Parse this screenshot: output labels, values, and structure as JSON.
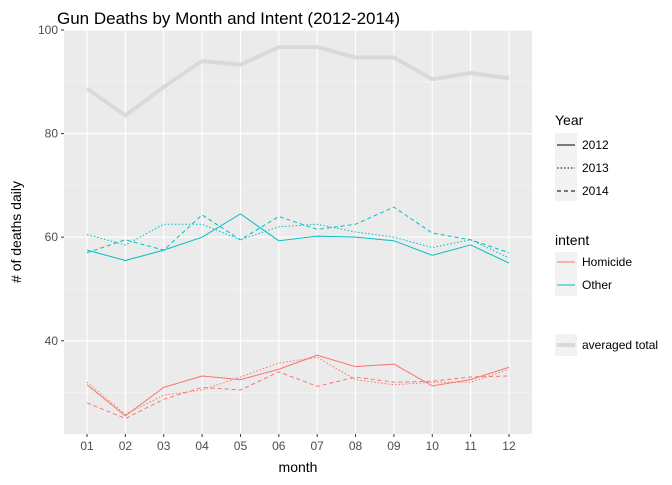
{
  "chart_data": {
    "type": "line",
    "title": "Gun Deaths by Month and Intent (2012-2014)",
    "xlabel": "month",
    "ylabel": "# of deaths daily",
    "categories": [
      "01",
      "02",
      "03",
      "04",
      "05",
      "06",
      "07",
      "08",
      "09",
      "10",
      "11",
      "12"
    ],
    "ylim": [
      22,
      100
    ],
    "yticks": [
      40,
      60,
      80,
      100
    ],
    "grid": true,
    "background": "#ebebeb",
    "legend_placement": "right",
    "colors": {
      "Homicide": "#f8766d",
      "Other": "#00bfc4",
      "averaged total": "#d9d9d9"
    },
    "legends": {
      "year": {
        "title": "Year",
        "entries": [
          "2012",
          "2013",
          "2014"
        ]
      },
      "intent": {
        "title": "intent",
        "entries": [
          "Homicide",
          "Other"
        ]
      },
      "total": {
        "entries": [
          "averaged total"
        ]
      }
    },
    "series": [
      {
        "intent": "Homicide",
        "year": "2012",
        "linetype": "solid",
        "values": [
          31.5,
          25.5,
          31.0,
          33.2,
          32.5,
          34.5,
          37.2,
          35.0,
          35.5,
          31.3,
          32.5,
          34.9
        ]
      },
      {
        "intent": "Homicide",
        "year": "2013",
        "linetype": "dotted",
        "values": [
          32.0,
          25.8,
          29.5,
          30.5,
          33.0,
          35.7,
          36.8,
          32.5,
          31.5,
          32.0,
          32.0,
          34.5
        ]
      },
      {
        "intent": "Homicide",
        "year": "2014",
        "linetype": "dashed",
        "values": [
          28.0,
          25.0,
          28.7,
          31.0,
          30.5,
          34.0,
          31.2,
          33.0,
          32.0,
          32.2,
          33.0,
          33.2
        ]
      },
      {
        "intent": "Other",
        "year": "2012",
        "linetype": "solid",
        "values": [
          57.5,
          55.5,
          57.5,
          60.0,
          64.5,
          59.3,
          60.2,
          60.0,
          59.3,
          56.5,
          58.5,
          55.0
        ]
      },
      {
        "intent": "Other",
        "year": "2013",
        "linetype": "dotted",
        "values": [
          60.5,
          58.5,
          62.5,
          62.5,
          59.5,
          62.0,
          62.5,
          61.0,
          60.0,
          58.0,
          59.5,
          56.0
        ]
      },
      {
        "intent": "Other",
        "year": "2014",
        "linetype": "dashed",
        "values": [
          57.0,
          59.5,
          57.5,
          64.3,
          59.5,
          64.0,
          61.5,
          62.5,
          65.8,
          60.8,
          59.5,
          57.0
        ]
      },
      {
        "intent": "averaged total",
        "year": "",
        "linetype": "solid",
        "values": [
          88.7,
          83.5,
          89.0,
          94.0,
          93.3,
          96.7,
          96.7,
          94.7,
          94.7,
          90.5,
          91.7,
          90.7
        ]
      }
    ]
  }
}
